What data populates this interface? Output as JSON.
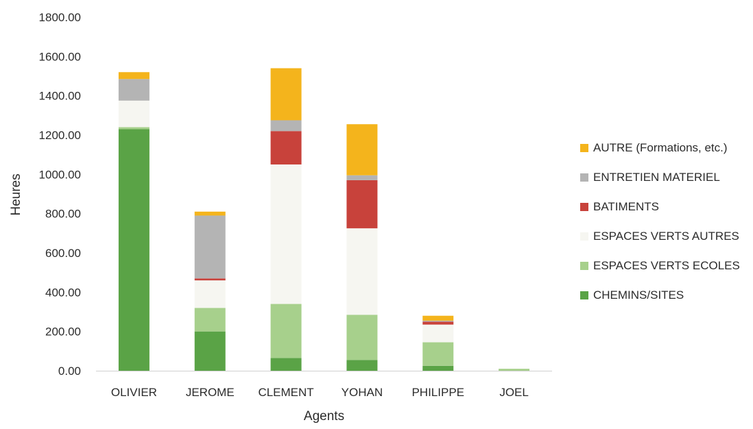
{
  "chart_data": {
    "type": "bar",
    "stacked": true,
    "xlabel": "Agents",
    "ylabel": "Heures",
    "ylim": [
      0,
      1800
    ],
    "y_ticks": [
      "0.00",
      "200.00",
      "400.00",
      "600.00",
      "800.00",
      "1000.00",
      "1200.00",
      "1400.00",
      "1600.00",
      "1800.00"
    ],
    "categories": [
      "OLIVIER",
      "JEROME",
      "CLEMENT",
      "YOHAN",
      "PHILIPPE",
      "JOEL"
    ],
    "series": [
      {
        "name": "CHEMINS/SITES",
        "color": "#5aa346",
        "values": [
          1230,
          200,
          65,
          55,
          25,
          0
        ]
      },
      {
        "name": "ESPACES VERTS ECOLES",
        "color": "#a7d08c",
        "values": [
          10,
          120,
          275,
          230,
          120,
          10
        ]
      },
      {
        "name": "ESPACES VERTS AUTRES",
        "color": "#f6f6f1",
        "values": [
          135,
          140,
          710,
          440,
          90,
          0
        ]
      },
      {
        "name": "BATIMENTS",
        "color": "#c8423b",
        "values": [
          0,
          10,
          170,
          245,
          15,
          0
        ]
      },
      {
        "name": "ENTRETIEN MATERIEL",
        "color": "#b4b4b4",
        "values": [
          110,
          320,
          55,
          25,
          5,
          0
        ]
      },
      {
        "name": "AUTRE (Formations, etc.)",
        "color": "#f4b41c",
        "values": [
          35,
          20,
          265,
          260,
          25,
          0
        ]
      }
    ],
    "legend": {
      "position": "right",
      "order": [
        "AUTRE (Formations, etc.)",
        "ENTRETIEN MATERIEL",
        "BATIMENTS",
        "ESPACES VERTS AUTRES",
        "ESPACES VERTS ECOLES",
        "CHEMINS/SITES"
      ]
    },
    "grid": false
  }
}
